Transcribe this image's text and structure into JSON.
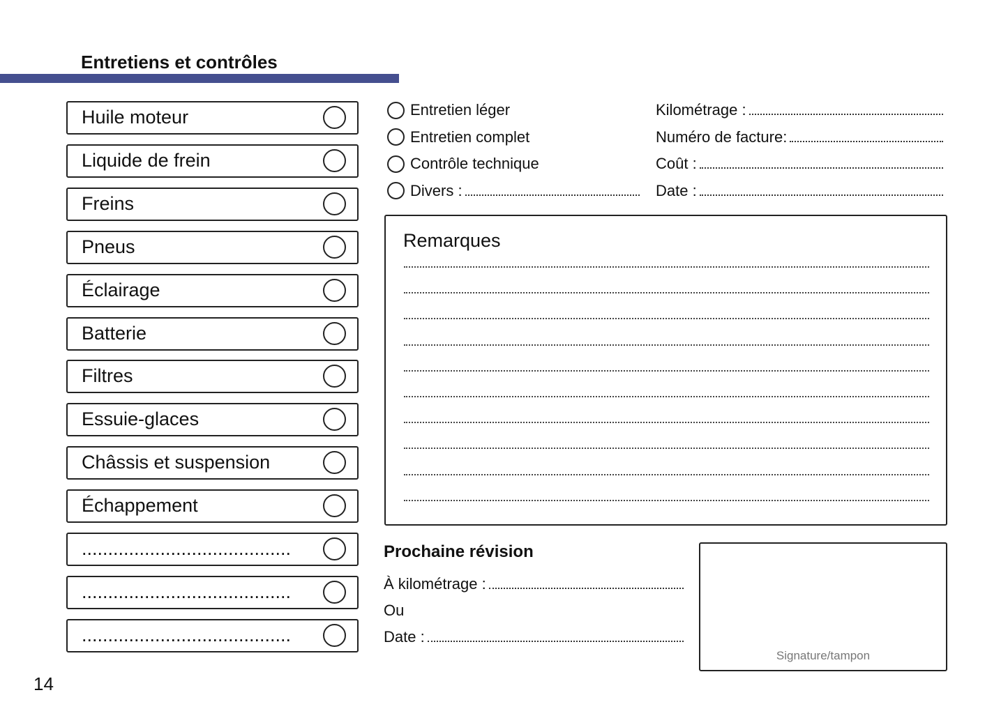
{
  "title": "Entretiens et contrôles",
  "accent_color": "#454f8f",
  "checklist": [
    "Huile moteur",
    "Liquide de frein",
    "Freins",
    "Pneus",
    "Éclairage",
    "Batterie",
    "Filtres",
    "Essuie-glaces",
    "Châssis et suspension",
    "Échappement",
    "........................................",
    "........................................",
    "........................................"
  ],
  "options": [
    "Entretien léger",
    "Entretien complet",
    "Contrôle technique",
    "Divers :"
  ],
  "fields": [
    "Kilométrage :",
    "Numéro de facture:",
    "Coût :",
    "Date :"
  ],
  "remarks": {
    "title": "Remarques"
  },
  "next": {
    "title": "Prochaine révision",
    "km": "À kilométrage :",
    "or": "Ou",
    "date": "Date :"
  },
  "signature": "Signature/tampon",
  "page_number": "14"
}
